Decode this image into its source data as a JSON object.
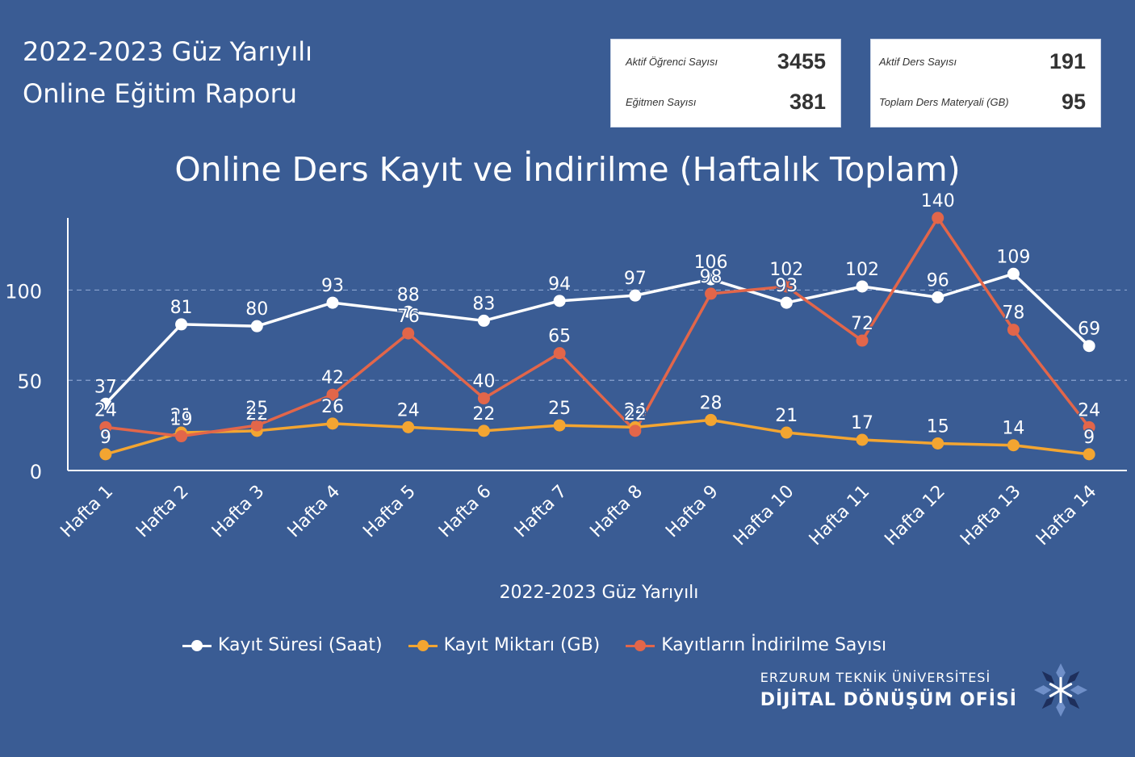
{
  "header": {
    "line1": "2022-2023 Güz Yarıyılı",
    "line2": "Online Eğitim Raporu"
  },
  "stats": {
    "active_students_label": "Aktif Öğrenci Sayısı",
    "active_students_value": "3455",
    "instructors_label": "Eğitmen Sayısı",
    "instructors_value": "381",
    "active_courses_label": "Aktif Ders Sayısı",
    "active_courses_value": "191",
    "materials_label": "Toplam Ders Materyali (GB)",
    "materials_value": "95"
  },
  "chart_data": {
    "type": "line",
    "title": "Online Ders Kayıt ve İndirilme (Haftalık Toplam)",
    "xlabel": "2022-2023 Güz Yarıyılı",
    "ylabel": "",
    "ylim": [
      0,
      140
    ],
    "yticks": [
      0,
      50,
      100
    ],
    "grid": true,
    "legend_position": "bottom",
    "categories": [
      "Hafta 1",
      "Hafta 2",
      "Hafta 3",
      "Hafta 4",
      "Hafta 5",
      "Hafta 6",
      "Hafta 7",
      "Hafta 8",
      "Hafta 9",
      "Hafta 10",
      "Hafta 11",
      "Hafta 12",
      "Hafta 13",
      "Hafta 14"
    ],
    "series": [
      {
        "name": "Kayıt Süresi (Saat)",
        "color": "#ffffff",
        "values": [
          37,
          81,
          80,
          93,
          88,
          83,
          94,
          97,
          106,
          93,
          102,
          96,
          109,
          69
        ]
      },
      {
        "name": "Kayıt Miktarı (GB)",
        "color": "#f3a531",
        "values": [
          9,
          21,
          22,
          26,
          24,
          22,
          25,
          24,
          28,
          21,
          17,
          15,
          14,
          9
        ]
      },
      {
        "name": "Kayıtların İndirilme Sayısı",
        "color": "#e2664a",
        "values": [
          24,
          19,
          25,
          42,
          76,
          40,
          65,
          22,
          98,
          102,
          72,
          140,
          78,
          24
        ]
      }
    ]
  },
  "footer": {
    "org_line1": "ERZURUM TEKNİK ÜNİVERSİTESİ",
    "org_line2": "DİJİTAL DÖNÜŞÜM OFİSİ"
  }
}
